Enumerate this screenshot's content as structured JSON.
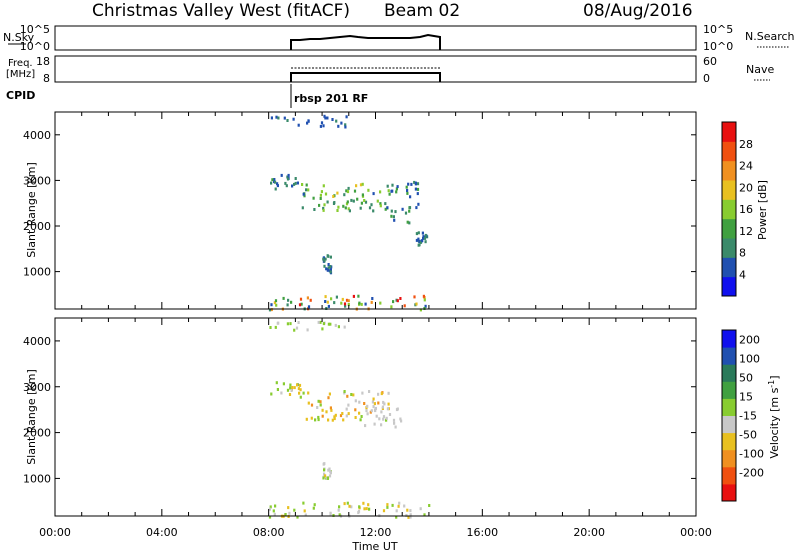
{
  "header": {
    "station": "Christmas Valley West (fitACF)",
    "beam": "Beam 02",
    "date": "08/Aug/2016"
  },
  "panels": {
    "nsky": {
      "label": "N.Sky",
      "ticks": [
        "10^5",
        "10^0"
      ],
      "right_ticks": [
        "10^5",
        "10^0"
      ],
      "right_label": "N.Search"
    },
    "freq": {
      "label_line1": "Freq.",
      "label_line2": "[MHz]",
      "ticks": [
        "18",
        "8"
      ],
      "right_ticks": [
        "60",
        "0"
      ],
      "right_label": "Nave"
    },
    "cpid": {
      "label": "CPID",
      "program": "rbsp  201  RF"
    }
  },
  "time_axis": {
    "label": "Time UT",
    "ticks": [
      "00:00",
      "04:00",
      "08:00",
      "12:00",
      "16:00",
      "20:00",
      "00:00"
    ]
  },
  "colors": {
    "power": [
      "#1010ee",
      "#2050b0",
      "#3a8a6a",
      "#40a040",
      "#88cc30",
      "#e8c020",
      "#f09020",
      "#f05010",
      "#e81010"
    ],
    "velocity": [
      "#e81010",
      "#f05010",
      "#f09020",
      "#e8c020",
      "#c8c8c8",
      "#88cc30",
      "#40a040",
      "#2a7a5a",
      "#2050b0",
      "#1010ee"
    ]
  },
  "chart_data": [
    {
      "type": "heatmap",
      "name": "power",
      "xlabel": "",
      "ylabel": "Slant Range [km]",
      "colorbar_label": "Power [dB]",
      "colorbar_ticks": [
        "28",
        "24",
        "20",
        "16",
        "12",
        "8",
        "4"
      ],
      "ylim": [
        180,
        4500
      ],
      "yticks": [
        "4000",
        "3000",
        "2000",
        "1000"
      ],
      "xlim": [
        0,
        24
      ],
      "data_window": [
        8.0,
        14.0
      ],
      "regions": [
        {
          "t": [
            8.0,
            14.0
          ],
          "r": [
            180,
            500
          ],
          "v": [
            4,
            30
          ]
        },
        {
          "t": [
            8.0,
            9.2
          ],
          "r": [
            2800,
            3150
          ],
          "v": [
            4,
            12
          ]
        },
        {
          "t": [
            9.2,
            12.5
          ],
          "r": [
            2350,
            2950
          ],
          "v": [
            6,
            18
          ]
        },
        {
          "t": [
            12.3,
            13.6
          ],
          "r": [
            2100,
            3000
          ],
          "v": [
            4,
            14
          ]
        },
        {
          "t": [
            10.0,
            10.3
          ],
          "r": [
            1000,
            1450
          ],
          "v": [
            4,
            10
          ]
        },
        {
          "t": [
            8.0,
            11.0
          ],
          "r": [
            4200,
            4450
          ],
          "v": [
            4,
            8
          ]
        },
        {
          "t": [
            13.5,
            13.9
          ],
          "r": [
            1600,
            1900
          ],
          "v": [
            4,
            10
          ]
        }
      ]
    },
    {
      "type": "heatmap",
      "name": "velocity",
      "xlabel": "Time UT",
      "ylabel": "Slant Range [km]",
      "colorbar_label": "Velocity [m s^-1]",
      "colorbar_ticks": [
        "200",
        "100",
        "50",
        "15",
        "-15",
        "-50",
        "-100",
        "-200"
      ],
      "ylim": [
        180,
        4500
      ],
      "yticks": [
        "4000",
        "3000",
        "2000",
        "1000"
      ],
      "xlim": [
        0,
        24
      ],
      "data_window": [
        8.0,
        14.0
      ],
      "regions": [
        {
          "t": [
            8.0,
            14.0
          ],
          "r": [
            180,
            500
          ],
          "v": [
            -30,
            40
          ]
        },
        {
          "t": [
            8.0,
            9.2
          ],
          "r": [
            2800,
            3150
          ],
          "v": [
            -60,
            60
          ]
        },
        {
          "t": [
            9.2,
            12.5
          ],
          "r": [
            2300,
            2950
          ],
          "v": [
            -70,
            30
          ]
        },
        {
          "t": [
            11.5,
            13.0
          ],
          "r": [
            2100,
            2600
          ],
          "v": [
            -10,
            10
          ]
        },
        {
          "t": [
            10.0,
            10.3
          ],
          "r": [
            1000,
            1400
          ],
          "v": [
            -20,
            30
          ]
        },
        {
          "t": [
            8.0,
            11.0
          ],
          "r": [
            4250,
            4450
          ],
          "v": [
            0,
            40
          ]
        }
      ]
    }
  ]
}
